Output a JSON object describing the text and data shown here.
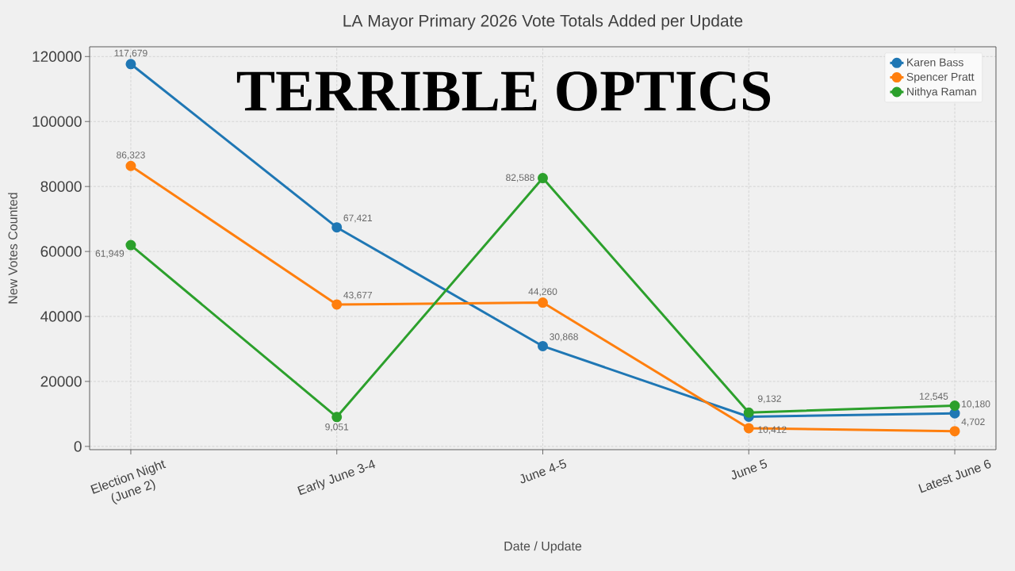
{
  "chart_data": {
    "type": "line",
    "title": "LA Mayor Primary 2026 Vote Totals Added per Update",
    "xlabel": "Date / Update",
    "ylabel": "New Votes Counted",
    "categories": [
      "Election Night (June 2)",
      "Early June 3-4",
      "June 4-5",
      "June 5",
      "Latest June 6"
    ],
    "series": [
      {
        "name": "Karen Bass",
        "color": "#1f77b4",
        "values": [
          117679,
          67421,
          30868,
          9132,
          10180
        ],
        "value_labels": [
          "117,679",
          "67,421",
          "30,868",
          "9,132",
          "10,180"
        ]
      },
      {
        "name": "Spencer Pratt",
        "color": "#ff7f0e",
        "values": [
          86323,
          43677,
          44260,
          5600,
          4702
        ],
        "value_labels": [
          "86,323",
          "43,677",
          "44,260",
          null,
          "4,702"
        ]
      },
      {
        "name": "Nithya Raman",
        "color": "#2ca02c",
        "values": [
          61949,
          9051,
          82588,
          10412,
          12545
        ],
        "value_labels": [
          "61,949",
          "9,051",
          "82,588",
          "10,412",
          "12,545"
        ]
      }
    ],
    "ylim": [
      -1000,
      123000
    ],
    "yticks": [
      0,
      20000,
      40000,
      60000,
      80000,
      100000,
      120000
    ],
    "grid": true,
    "legend": "top right",
    "marker": "circle",
    "line_style": "solid",
    "annotations": [
      "TERRIBLE OPTICS"
    ]
  }
}
